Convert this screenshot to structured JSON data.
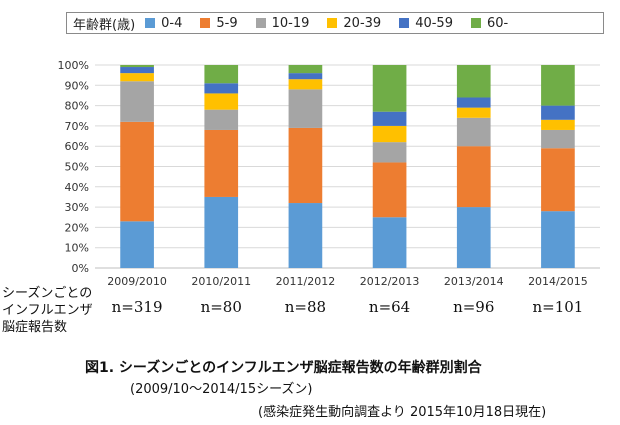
{
  "chart_data": {
    "type": "bar",
    "stacked": true,
    "normalized": true,
    "categories": [
      "2009/2010",
      "2010/2011",
      "2011/2012",
      "2012/2013",
      "2013/2014",
      "2014/2015"
    ],
    "n_labels": [
      "n=319",
      "n=80",
      "n=88",
      "n=64",
      "n=96",
      "n=101"
    ],
    "y_ticks": [
      "0%",
      "10%",
      "20%",
      "30%",
      "40%",
      "50%",
      "60%",
      "70%",
      "80%",
      "90%",
      "100%"
    ],
    "ylim": [
      0,
      100
    ],
    "grid": true,
    "legend_position": "top",
    "legend_title": "年齢群(歳)",
    "series": [
      {
        "name": "0-4",
        "color": "#5b9bd5",
        "values": [
          23,
          35,
          32,
          25,
          30,
          28
        ]
      },
      {
        "name": "5-9",
        "color": "#ed7d31",
        "values": [
          49,
          33,
          37,
          27,
          30,
          31
        ]
      },
      {
        "name": "10-19",
        "color": "#a5a5a5",
        "values": [
          20,
          10,
          19,
          10,
          14,
          9
        ]
      },
      {
        "name": "20-39",
        "color": "#ffc000",
        "values": [
          4,
          8,
          5,
          8,
          5,
          5
        ]
      },
      {
        "name": "40-59",
        "color": "#4472c4",
        "values": [
          3,
          5,
          3,
          7,
          5,
          7
        ]
      },
      {
        "name": "60-",
        "color": "#70ad47",
        "values": [
          1,
          9,
          4,
          23,
          16,
          20
        ]
      }
    ]
  },
  "row_label": "シーズンごとの\nインフルエンザ\n脳症報告数",
  "caption": {
    "line1": "図1. シーズンごとのインフルエンザ脳症報告数の年齢群別割合",
    "line2": "(2009/10～2014/15シーズン)",
    "line3": "(感染症発生動向調査より 2015年10月18日現在)"
  }
}
